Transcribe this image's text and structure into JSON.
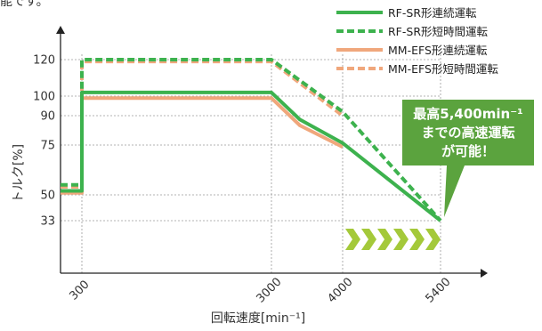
{
  "page": {
    "top_text": "能です。"
  },
  "chart_data": {
    "type": "line",
    "title": "",
    "xlabel": "回転速度[min⁻¹]",
    "ylabel": "トルク[%]",
    "x_ticks": [
      300,
      3000,
      4000,
      5400
    ],
    "y_ticks": [
      33,
      50,
      75,
      90,
      100,
      120
    ],
    "grid": true,
    "legend_position": "top-right",
    "series": [
      {
        "name": "RF-SR形連続運転",
        "color": "#3db24e",
        "style": "solid",
        "points": [
          [
            0,
            52
          ],
          [
            300,
            52
          ],
          [
            300,
            102
          ],
          [
            3000,
            102
          ],
          [
            3400,
            88
          ],
          [
            4000,
            76
          ],
          [
            5400,
            33
          ]
        ]
      },
      {
        "name": "RF-SR形短時間運転",
        "color": "#3db24e",
        "style": "dashed",
        "points": [
          [
            0,
            55
          ],
          [
            300,
            55
          ],
          [
            300,
            120
          ],
          [
            3000,
            120
          ],
          [
            4000,
            92
          ],
          [
            5400,
            33
          ]
        ]
      },
      {
        "name": "MM-EFS形連続運転",
        "color": "#f0a77c",
        "style": "solid",
        "points": [
          [
            0,
            51
          ],
          [
            300,
            51
          ],
          [
            300,
            99
          ],
          [
            3000,
            99
          ],
          [
            3400,
            85
          ],
          [
            4000,
            74
          ]
        ]
      },
      {
        "name": "MM-EFS形短時間運転",
        "color": "#f0a77c",
        "style": "dashed",
        "points": [
          [
            0,
            54
          ],
          [
            300,
            54
          ],
          [
            300,
            119
          ],
          [
            3000,
            119
          ],
          [
            4000,
            90
          ]
        ]
      }
    ],
    "annotation": {
      "lines": [
        "最高5,400min⁻¹",
        "までの高速運転",
        "が可能！"
      ],
      "color": "#5ba33e",
      "arrow_color": "#a4c93a",
      "arrow_count": 6
    }
  }
}
